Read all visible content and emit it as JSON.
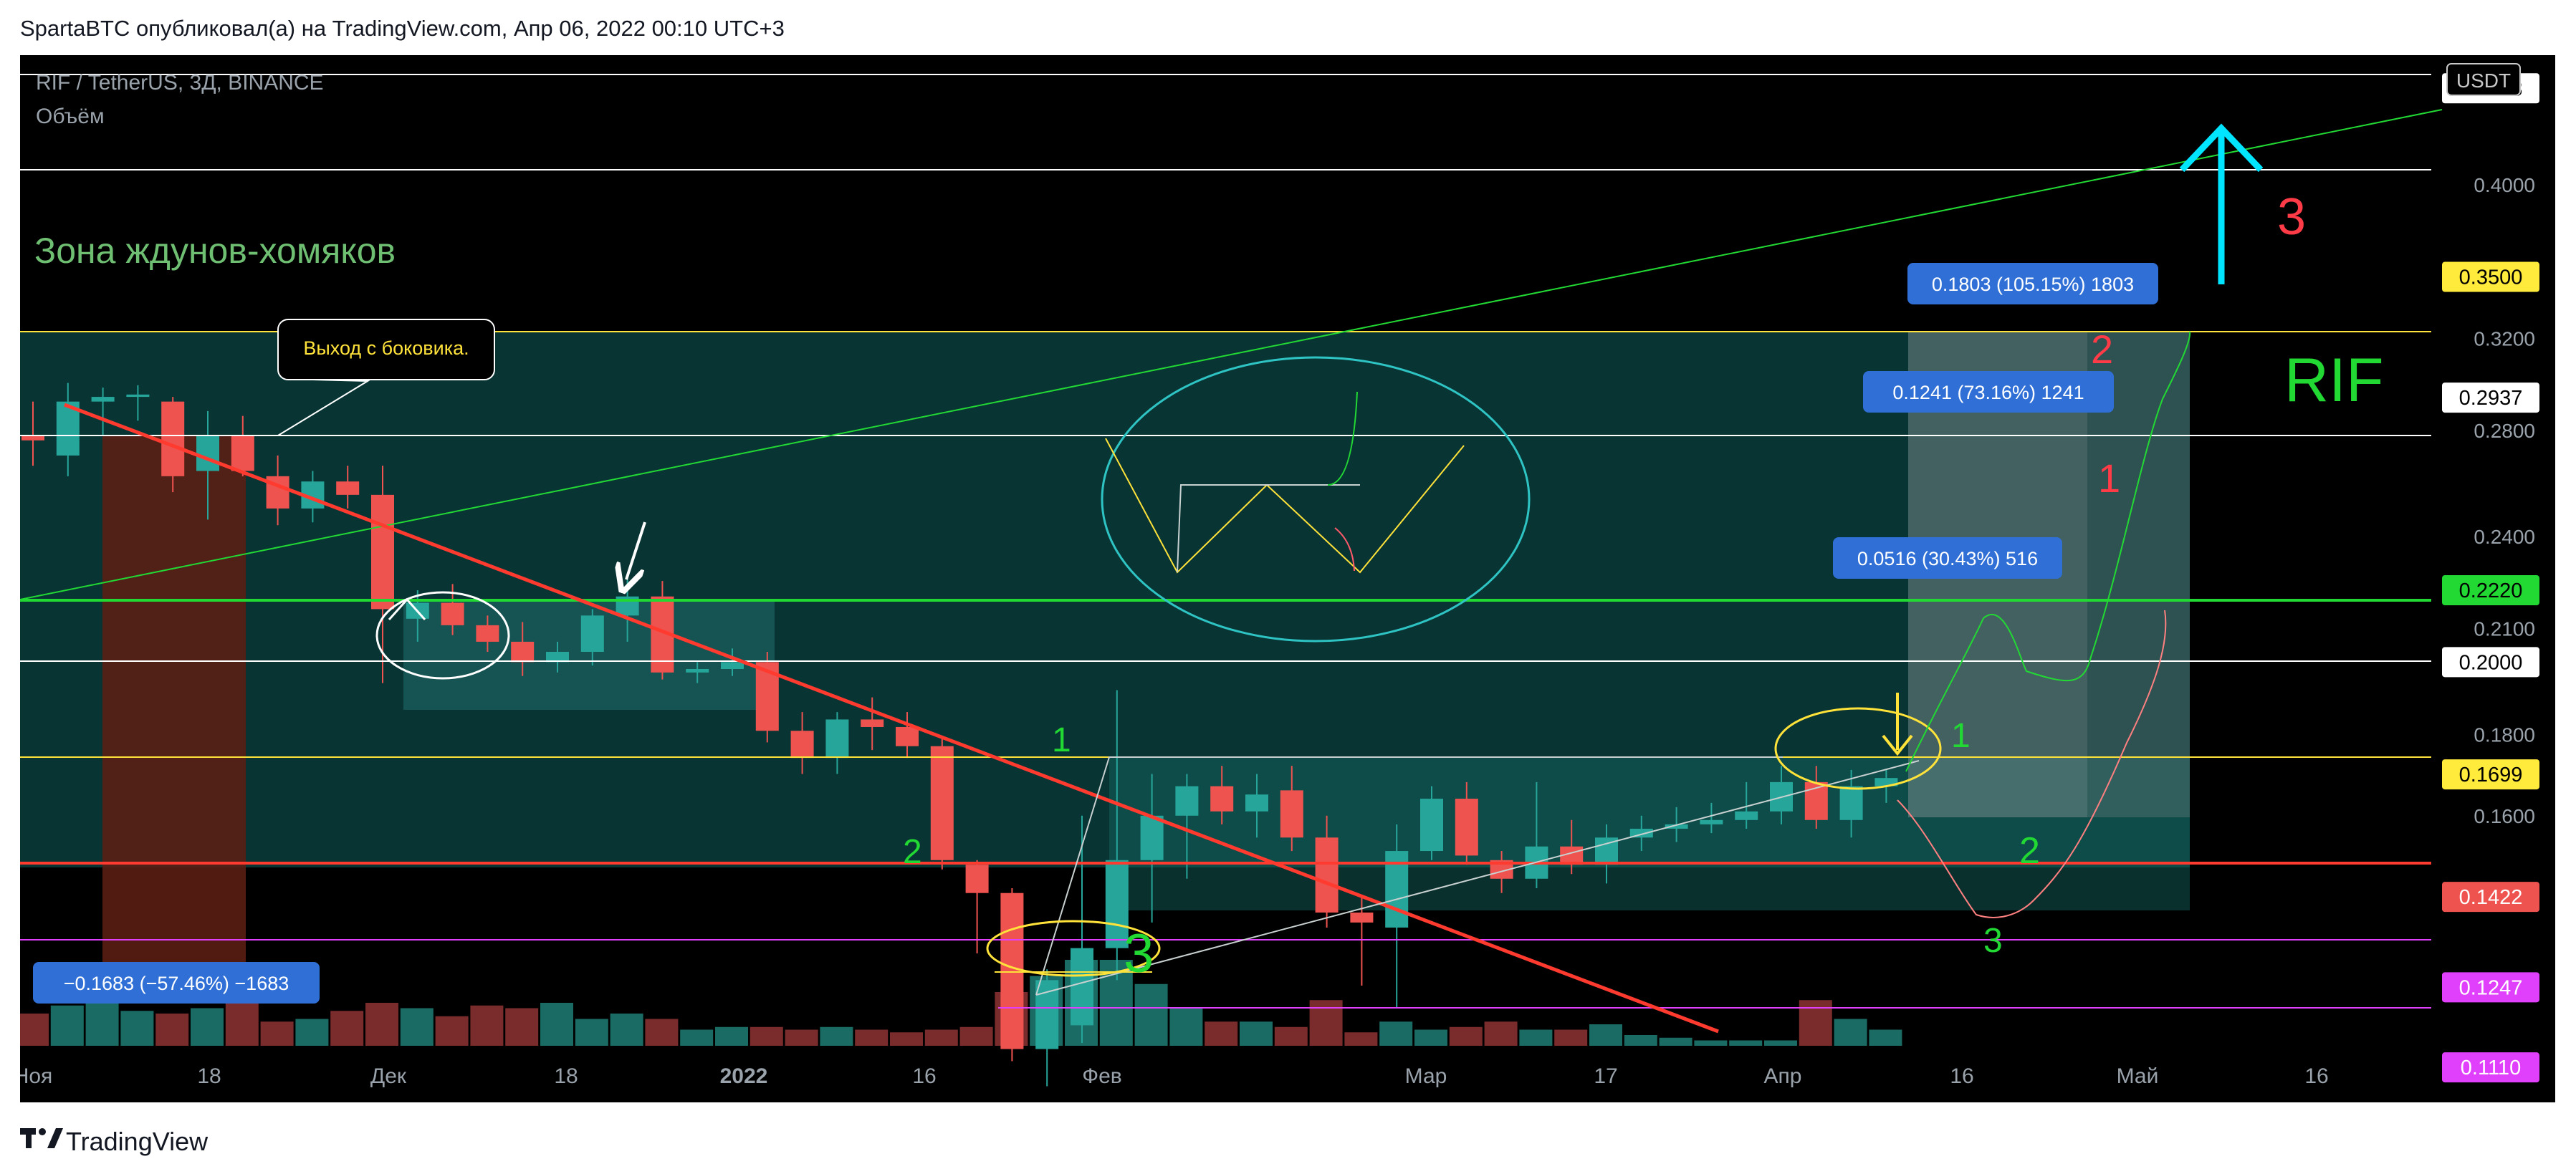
{
  "header": {
    "author": "SpartaBTC",
    "published_text": "опубликовал(а) на TradingView.com, Апр 06, 2022 00:10 UTC+3"
  },
  "symbol": {
    "title": "RIF / TetherUS, 3Д, BINANCE",
    "volume_label": "Объём",
    "currency": "USDT"
  },
  "footer": {
    "brand": "TradingView"
  },
  "colors": {
    "up": "#26a69a",
    "down": "#ef5350",
    "zone": "#0b3d3d",
    "green_line": "#22d934",
    "red_line": "#ff3b30",
    "yellow_line": "#ffe23a",
    "magenta_line": "#e040fb"
  },
  "chart_data": {
    "type": "candlestick",
    "y_scale": "log",
    "ylim": [
      0.1055,
      0.483
    ],
    "x_ticks": [
      "Ноя",
      "18",
      "Дек",
      "18",
      "2022",
      "16",
      "Фев",
      "Мар",
      "17",
      "Апр",
      "16",
      "Май",
      "16"
    ],
    "y_ticks": [
      "0.4000",
      "0.3200",
      "0.2800",
      "0.2400",
      "0.2100",
      "0.1800",
      "0.1600"
    ],
    "price_labels": [
      {
        "label": "0.4603",
        "price": 0.4603,
        "bg": "#ffffff",
        "fg": "#000000"
      },
      {
        "label": "0.3500",
        "price": 0.35,
        "bg": "#ffeb3b",
        "fg": "#000000"
      },
      {
        "label": "0.2937",
        "price": 0.2937,
        "bg": "#ffffff",
        "fg": "#000000"
      },
      {
        "label": "0.2220",
        "price": 0.222,
        "bg": "#22d934",
        "fg": "#000000"
      },
      {
        "label": "0.2000",
        "price": 0.2,
        "bg": "#ffffff",
        "fg": "#000000"
      },
      {
        "label": "0.1699",
        "price": 0.1699,
        "bg": "#ffeb3b",
        "fg": "#000000"
      },
      {
        "label": "0.1422",
        "price": 0.1422,
        "bg": "#ef5350",
        "fg": "#ffffff"
      },
      {
        "label": "0.1247",
        "price": 0.1247,
        "bg": "#e040fb",
        "fg": "#ffffff"
      },
      {
        "label": "0.1110",
        "price": 0.111,
        "bg": "#e040fb",
        "fg": "#ffffff"
      }
    ],
    "candles": [
      {
        "o": 0.278,
        "h": 0.292,
        "l": 0.266,
        "c": 0.276
      },
      {
        "o": 0.27,
        "h": 0.3,
        "l": 0.262,
        "c": 0.292
      },
      {
        "o": 0.292,
        "h": 0.298,
        "l": 0.278,
        "c": 0.294
      },
      {
        "o": 0.294,
        "h": 0.299,
        "l": 0.284,
        "c": 0.295
      },
      {
        "o": 0.292,
        "h": 0.294,
        "l": 0.256,
        "c": 0.262
      },
      {
        "o": 0.264,
        "h": 0.288,
        "l": 0.246,
        "c": 0.278
      },
      {
        "o": 0.278,
        "h": 0.286,
        "l": 0.262,
        "c": 0.264
      },
      {
        "o": 0.262,
        "h": 0.27,
        "l": 0.244,
        "c": 0.25
      },
      {
        "o": 0.25,
        "h": 0.264,
        "l": 0.245,
        "c": 0.26
      },
      {
        "o": 0.26,
        "h": 0.266,
        "l": 0.25,
        "c": 0.255
      },
      {
        "o": 0.255,
        "h": 0.266,
        "l": 0.194,
        "c": 0.216
      },
      {
        "o": 0.213,
        "h": 0.222,
        "l": 0.206,
        "c": 0.218
      },
      {
        "o": 0.218,
        "h": 0.224,
        "l": 0.208,
        "c": 0.211
      },
      {
        "o": 0.211,
        "h": 0.214,
        "l": 0.203,
        "c": 0.206
      },
      {
        "o": 0.206,
        "h": 0.212,
        "l": 0.196,
        "c": 0.2
      },
      {
        "o": 0.2,
        "h": 0.206,
        "l": 0.197,
        "c": 0.203
      },
      {
        "o": 0.203,
        "h": 0.216,
        "l": 0.199,
        "c": 0.214
      },
      {
        "o": 0.214,
        "h": 0.226,
        "l": 0.206,
        "c": 0.22
      },
      {
        "o": 0.22,
        "h": 0.225,
        "l": 0.195,
        "c": 0.197
      },
      {
        "o": 0.197,
        "h": 0.2,
        "l": 0.194,
        "c": 0.198
      },
      {
        "o": 0.198,
        "h": 0.204,
        "l": 0.196,
        "c": 0.2
      },
      {
        "o": 0.2,
        "h": 0.203,
        "l": 0.178,
        "c": 0.181
      },
      {
        "o": 0.181,
        "h": 0.186,
        "l": 0.17,
        "c": 0.174
      },
      {
        "o": 0.174,
        "h": 0.186,
        "l": 0.17,
        "c": 0.184
      },
      {
        "o": 0.184,
        "h": 0.19,
        "l": 0.176,
        "c": 0.182
      },
      {
        "o": 0.182,
        "h": 0.186,
        "l": 0.174,
        "c": 0.177
      },
      {
        "o": 0.177,
        "h": 0.179,
        "l": 0.148,
        "c": 0.15
      },
      {
        "o": 0.149,
        "h": 0.15,
        "l": 0.131,
        "c": 0.143
      },
      {
        "o": 0.143,
        "h": 0.144,
        "l": 0.112,
        "c": 0.114
      },
      {
        "o": 0.114,
        "h": 0.128,
        "l": 0.108,
        "c": 0.126
      },
      {
        "o": 0.118,
        "h": 0.16,
        "l": 0.115,
        "c": 0.132
      },
      {
        "o": 0.132,
        "h": 0.192,
        "l": 0.126,
        "c": 0.15
      },
      {
        "o": 0.15,
        "h": 0.17,
        "l": 0.137,
        "c": 0.16
      },
      {
        "o": 0.16,
        "h": 0.17,
        "l": 0.146,
        "c": 0.167
      },
      {
        "o": 0.167,
        "h": 0.172,
        "l": 0.158,
        "c": 0.161
      },
      {
        "o": 0.161,
        "h": 0.17,
        "l": 0.155,
        "c": 0.165
      },
      {
        "o": 0.166,
        "h": 0.172,
        "l": 0.152,
        "c": 0.155
      },
      {
        "o": 0.155,
        "h": 0.16,
        "l": 0.136,
        "c": 0.139
      },
      {
        "o": 0.139,
        "h": 0.142,
        "l": 0.125,
        "c": 0.137
      },
      {
        "o": 0.136,
        "h": 0.158,
        "l": 0.121,
        "c": 0.152
      },
      {
        "o": 0.152,
        "h": 0.167,
        "l": 0.15,
        "c": 0.164
      },
      {
        "o": 0.164,
        "h": 0.168,
        "l": 0.149,
        "c": 0.151
      },
      {
        "o": 0.15,
        "h": 0.152,
        "l": 0.143,
        "c": 0.146
      },
      {
        "o": 0.146,
        "h": 0.168,
        "l": 0.144,
        "c": 0.153
      },
      {
        "o": 0.153,
        "h": 0.159,
        "l": 0.147,
        "c": 0.149
      },
      {
        "o": 0.149,
        "h": 0.158,
        "l": 0.145,
        "c": 0.155
      },
      {
        "o": 0.155,
        "h": 0.16,
        "l": 0.152,
        "c": 0.157
      },
      {
        "o": 0.157,
        "h": 0.162,
        "l": 0.154,
        "c": 0.158
      },
      {
        "o": 0.158,
        "h": 0.163,
        "l": 0.156,
        "c": 0.159
      },
      {
        "o": 0.159,
        "h": 0.168,
        "l": 0.157,
        "c": 0.161
      },
      {
        "o": 0.161,
        "h": 0.172,
        "l": 0.158,
        "c": 0.168
      },
      {
        "o": 0.168,
        "h": 0.172,
        "l": 0.157,
        "c": 0.159
      },
      {
        "o": 0.159,
        "h": 0.171,
        "l": 0.155,
        "c": 0.167
      },
      {
        "o": 0.167,
        "h": 0.171,
        "l": 0.163,
        "c": 0.169
      }
    ],
    "volume": [
      1.2,
      1.5,
      1.8,
      1.3,
      1.2,
      1.4,
      1.8,
      0.9,
      1.0,
      1.3,
      1.6,
      1.4,
      1.1,
      1.5,
      1.4,
      1.6,
      1.0,
      1.2,
      1.0,
      0.6,
      0.7,
      0.7,
      0.6,
      0.7,
      0.6,
      0.5,
      0.6,
      0.7,
      2.0,
      2.6,
      3.2,
      3.2,
      2.3,
      1.4,
      0.9,
      0.9,
      0.7,
      1.7,
      0.5,
      0.9,
      0.6,
      0.7,
      0.9,
      0.6,
      0.6,
      0.8,
      0.4,
      0.3,
      0.2,
      0.2,
      0.2,
      1.7,
      1.0,
      0.6
    ]
  },
  "annotations": {
    "zone_label": "Зона ждунов-хомяков",
    "callout": "Выход с боковика.",
    "rif_label": "RIF",
    "measure_labels": [
      "0.1803 (105.15%) 1803",
      "0.1241 (73.16%) 1241",
      "0.0516 (30.43%) 516",
      "−0.1683 (−57.46%) −1683"
    ],
    "wave_numbers": [
      "1",
      "2",
      "3",
      "1",
      "2",
      "3",
      "1",
      "2",
      "3"
    ]
  }
}
